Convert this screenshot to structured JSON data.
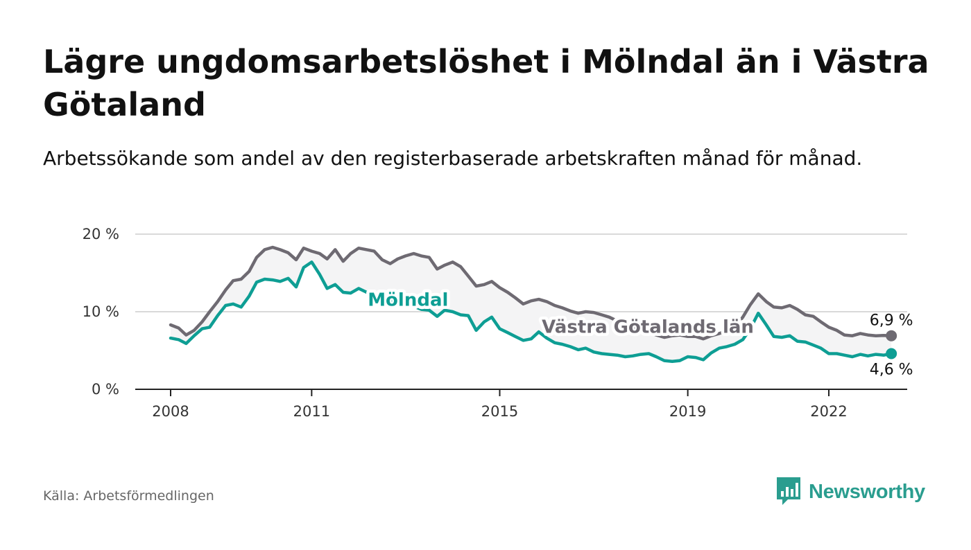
{
  "title": "Lägre ungdomsarbetslöshet i Mölndal än i Västra Götaland",
  "subtitle": "Arbetssökande som andel av den registerbaserade arbetskraften månad för månad.",
  "source": "Källa: Arbetsförmedlingen",
  "brand": {
    "name": "Newsworthy",
    "icon": "bar-chart-speech-bubble-icon",
    "color": "#2a9d8f"
  },
  "colors": {
    "molndal": "#0e9e94",
    "vastra": "#6e6a72",
    "fill": "#f4f4f5",
    "axis": "#222222",
    "grid": "#d9d9d9"
  },
  "chart_data": {
    "type": "line",
    "title": "Lägre ungdomsarbetslöshet i Mölndal än i Västra Götaland",
    "xlabel": "",
    "ylabel": "",
    "x_range": [
      2007.75,
      2023.65
    ],
    "ylim": [
      0,
      20
    ],
    "y_ticks": [
      0,
      10,
      20
    ],
    "y_tick_labels": [
      "0 %",
      "10 %",
      "20 %"
    ],
    "x_ticks": [
      2008,
      2011,
      2015,
      2019,
      2022
    ],
    "x_tick_labels": [
      "2008",
      "2011",
      "2015",
      "2019",
      "2022"
    ],
    "grid": true,
    "legend": "inline labels",
    "series": [
      {
        "name": "Västra Götalands län",
        "label": "Västra Götalands län",
        "end_label": "6,9 %",
        "points": [
          [
            2008.0,
            8.3
          ],
          [
            2008.17,
            7.9
          ],
          [
            2008.33,
            7.0
          ],
          [
            2008.5,
            7.6
          ],
          [
            2008.67,
            8.7
          ],
          [
            2008.83,
            10.0
          ],
          [
            2009.0,
            11.3
          ],
          [
            2009.17,
            12.8
          ],
          [
            2009.33,
            14.0
          ],
          [
            2009.5,
            14.2
          ],
          [
            2009.67,
            15.2
          ],
          [
            2009.83,
            17.0
          ],
          [
            2010.0,
            18.0
          ],
          [
            2010.17,
            18.3
          ],
          [
            2010.33,
            18.0
          ],
          [
            2010.5,
            17.6
          ],
          [
            2010.67,
            16.7
          ],
          [
            2010.83,
            18.2
          ],
          [
            2011.0,
            17.8
          ],
          [
            2011.17,
            17.5
          ],
          [
            2011.33,
            16.8
          ],
          [
            2011.5,
            18.0
          ],
          [
            2011.67,
            16.5
          ],
          [
            2011.83,
            17.5
          ],
          [
            2012.0,
            18.2
          ],
          [
            2012.17,
            18.0
          ],
          [
            2012.33,
            17.8
          ],
          [
            2012.5,
            16.7
          ],
          [
            2012.67,
            16.2
          ],
          [
            2012.83,
            16.8
          ],
          [
            2013.0,
            17.2
          ],
          [
            2013.17,
            17.5
          ],
          [
            2013.33,
            17.2
          ],
          [
            2013.5,
            17.0
          ],
          [
            2013.67,
            15.5
          ],
          [
            2013.83,
            16.0
          ],
          [
            2014.0,
            16.4
          ],
          [
            2014.17,
            15.8
          ],
          [
            2014.33,
            14.6
          ],
          [
            2014.5,
            13.3
          ],
          [
            2014.67,
            13.5
          ],
          [
            2014.83,
            13.9
          ],
          [
            2015.0,
            13.1
          ],
          [
            2015.17,
            12.5
          ],
          [
            2015.33,
            11.8
          ],
          [
            2015.5,
            11.0
          ],
          [
            2015.67,
            11.4
          ],
          [
            2015.83,
            11.6
          ],
          [
            2016.0,
            11.3
          ],
          [
            2016.17,
            10.8
          ],
          [
            2016.33,
            10.5
          ],
          [
            2016.5,
            10.1
          ],
          [
            2016.67,
            9.8
          ],
          [
            2016.83,
            10.0
          ],
          [
            2017.0,
            9.9
          ],
          [
            2017.17,
            9.6
          ],
          [
            2017.33,
            9.3
          ],
          [
            2017.5,
            8.8
          ],
          [
            2017.67,
            8.4
          ],
          [
            2017.83,
            8.0
          ],
          [
            2018.0,
            7.6
          ],
          [
            2018.17,
            7.3
          ],
          [
            2018.33,
            7.0
          ],
          [
            2018.5,
            6.7
          ],
          [
            2018.67,
            6.9
          ],
          [
            2018.83,
            7.0
          ],
          [
            2019.0,
            6.8
          ],
          [
            2019.17,
            6.8
          ],
          [
            2019.33,
            6.5
          ],
          [
            2019.5,
            6.9
          ],
          [
            2019.67,
            7.2
          ],
          [
            2019.83,
            7.5
          ],
          [
            2020.0,
            8.0
          ],
          [
            2020.17,
            9.3
          ],
          [
            2020.33,
            10.9
          ],
          [
            2020.5,
            12.3
          ],
          [
            2020.67,
            11.3
          ],
          [
            2020.83,
            10.6
          ],
          [
            2021.0,
            10.5
          ],
          [
            2021.17,
            10.8
          ],
          [
            2021.33,
            10.3
          ],
          [
            2021.5,
            9.6
          ],
          [
            2021.67,
            9.4
          ],
          [
            2021.83,
            8.7
          ],
          [
            2022.0,
            8.0
          ],
          [
            2022.17,
            7.6
          ],
          [
            2022.33,
            7.0
          ],
          [
            2022.5,
            6.9
          ],
          [
            2022.67,
            7.2
          ],
          [
            2022.83,
            7.0
          ],
          [
            2023.0,
            6.9
          ],
          [
            2023.17,
            6.95
          ],
          [
            2023.33,
            6.9
          ]
        ]
      },
      {
        "name": "Mölndal",
        "label": "Mölndal",
        "end_label": "4,6 %",
        "points": [
          [
            2008.0,
            6.6
          ],
          [
            2008.17,
            6.4
          ],
          [
            2008.33,
            5.9
          ],
          [
            2008.5,
            6.9
          ],
          [
            2008.67,
            7.8
          ],
          [
            2008.83,
            8.0
          ],
          [
            2009.0,
            9.5
          ],
          [
            2009.17,
            10.8
          ],
          [
            2009.33,
            11.0
          ],
          [
            2009.5,
            10.6
          ],
          [
            2009.67,
            12.0
          ],
          [
            2009.83,
            13.8
          ],
          [
            2010.0,
            14.2
          ],
          [
            2010.17,
            14.1
          ],
          [
            2010.33,
            13.9
          ],
          [
            2010.5,
            14.3
          ],
          [
            2010.67,
            13.2
          ],
          [
            2010.83,
            15.7
          ],
          [
            2011.0,
            16.4
          ],
          [
            2011.17,
            14.8
          ],
          [
            2011.33,
            13.0
          ],
          [
            2011.5,
            13.5
          ],
          [
            2011.67,
            12.5
          ],
          [
            2011.83,
            12.4
          ],
          [
            2012.0,
            13.0
          ],
          [
            2012.17,
            12.5
          ],
          [
            2012.33,
            12.4
          ],
          [
            2012.5,
            12.2
          ],
          [
            2012.67,
            11.6
          ],
          [
            2012.83,
            11.2
          ],
          [
            2013.0,
            11.0
          ],
          [
            2013.17,
            10.7
          ],
          [
            2013.33,
            10.3
          ],
          [
            2013.5,
            10.2
          ],
          [
            2013.67,
            9.4
          ],
          [
            2013.83,
            10.2
          ],
          [
            2014.0,
            10.0
          ],
          [
            2014.17,
            9.6
          ],
          [
            2014.33,
            9.5
          ],
          [
            2014.5,
            7.6
          ],
          [
            2014.67,
            8.7
          ],
          [
            2014.83,
            9.3
          ],
          [
            2015.0,
            7.8
          ],
          [
            2015.17,
            7.3
          ],
          [
            2015.33,
            6.8
          ],
          [
            2015.5,
            6.3
          ],
          [
            2015.67,
            6.5
          ],
          [
            2015.83,
            7.4
          ],
          [
            2016.0,
            6.6
          ],
          [
            2016.17,
            6.0
          ],
          [
            2016.33,
            5.8
          ],
          [
            2016.5,
            5.5
          ],
          [
            2016.67,
            5.1
          ],
          [
            2016.83,
            5.3
          ],
          [
            2017.0,
            4.8
          ],
          [
            2017.17,
            4.6
          ],
          [
            2017.33,
            4.5
          ],
          [
            2017.5,
            4.4
          ],
          [
            2017.67,
            4.2
          ],
          [
            2017.83,
            4.3
          ],
          [
            2018.0,
            4.5
          ],
          [
            2018.17,
            4.6
          ],
          [
            2018.33,
            4.2
          ],
          [
            2018.5,
            3.7
          ],
          [
            2018.67,
            3.6
          ],
          [
            2018.83,
            3.7
          ],
          [
            2019.0,
            4.2
          ],
          [
            2019.17,
            4.1
          ],
          [
            2019.33,
            3.8
          ],
          [
            2019.5,
            4.7
          ],
          [
            2019.67,
            5.3
          ],
          [
            2019.83,
            5.5
          ],
          [
            2020.0,
            5.8
          ],
          [
            2020.17,
            6.4
          ],
          [
            2020.33,
            7.8
          ],
          [
            2020.5,
            9.8
          ],
          [
            2020.67,
            8.3
          ],
          [
            2020.83,
            6.8
          ],
          [
            2021.0,
            6.7
          ],
          [
            2021.17,
            6.9
          ],
          [
            2021.33,
            6.2
          ],
          [
            2021.5,
            6.1
          ],
          [
            2021.67,
            5.7
          ],
          [
            2021.83,
            5.3
          ],
          [
            2022.0,
            4.6
          ],
          [
            2022.17,
            4.6
          ],
          [
            2022.33,
            4.4
          ],
          [
            2022.5,
            4.2
          ],
          [
            2022.67,
            4.5
          ],
          [
            2022.83,
            4.3
          ],
          [
            2023.0,
            4.5
          ],
          [
            2023.17,
            4.4
          ],
          [
            2023.33,
            4.6
          ]
        ]
      }
    ]
  }
}
